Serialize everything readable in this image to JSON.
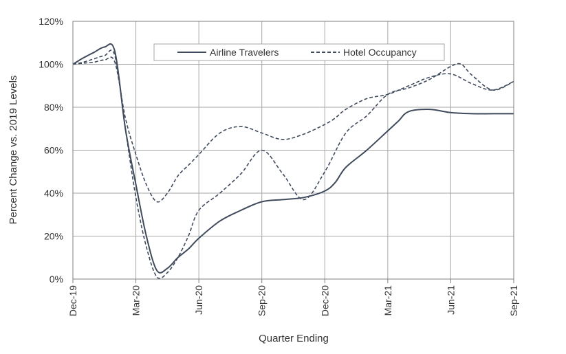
{
  "chart_data": {
    "type": "line",
    "xlabel": "Quarter Ending",
    "ylabel": "Percent Change vs. 2019 Levels",
    "ylim": [
      0,
      120
    ],
    "y_ticks": [
      "0%",
      "20%",
      "40%",
      "60%",
      "80%",
      "100%",
      "120%"
    ],
    "x_ticks": [
      "Dec-19",
      "Mar-20",
      "Jun-20",
      "Sep-20",
      "Dec-20",
      "Mar-21",
      "Jun-21",
      "Sep-21"
    ],
    "xlim": [
      0,
      21
    ],
    "grid": true,
    "legend_position": "top-center",
    "colors": {
      "line": "#3f4a5c",
      "grid": "#a6a6a6",
      "frame": "#7f7f7f"
    },
    "series": [
      {
        "name": "Airline Travelers",
        "style": "solid",
        "x": [
          0,
          0.5,
          1,
          1.5,
          2,
          2.5,
          3,
          3.5,
          4,
          4.5,
          5,
          5.5,
          6,
          7,
          8,
          9,
          10,
          11,
          12,
          12.5,
          13,
          14,
          15,
          15.5,
          16,
          17,
          18,
          19,
          20,
          21
        ],
        "values": [
          100,
          103,
          105.5,
          108,
          106,
          70,
          44,
          20,
          4,
          5,
          10,
          14,
          19,
          27,
          32,
          36,
          37,
          38,
          41,
          45,
          52,
          60,
          69,
          73.5,
          78,
          79,
          77.5,
          77,
          77,
          77
        ]
      },
      {
        "name": "Hotel Occupancy",
        "style": "dashed",
        "x": [
          0,
          0.5,
          1,
          1.5,
          2,
          2.5,
          3,
          3.5,
          4,
          4.5,
          5,
          5.5,
          6,
          7,
          8,
          9,
          10,
          11,
          12,
          12.5,
          13,
          14,
          15,
          16,
          17,
          18,
          19,
          20,
          21
        ],
        "values": [
          100,
          100.5,
          101,
          102,
          101,
          75,
          58,
          44,
          36,
          40,
          48,
          53,
          58,
          68,
          71,
          68,
          65,
          67.5,
          72,
          75,
          79,
          84,
          86,
          90,
          94,
          95.5,
          91,
          88,
          92
        ]
      },
      {
        "name": "",
        "style": "dashed",
        "x": [
          0,
          0.5,
          1,
          1.5,
          2,
          2.5,
          3,
          3.5,
          4,
          4.5,
          5,
          5.5,
          6,
          7,
          8,
          9,
          10,
          11,
          12,
          13,
          14,
          15,
          16,
          17,
          18,
          18.5,
          19,
          20,
          21
        ],
        "values": [
          100,
          101,
          102.5,
          104,
          104,
          70,
          38,
          15,
          1,
          3,
          10,
          20,
          32,
          40,
          49,
          60,
          49,
          37,
          50,
          68,
          76,
          86,
          89,
          93,
          99,
          100,
          95,
          88,
          92
        ]
      }
    ]
  }
}
